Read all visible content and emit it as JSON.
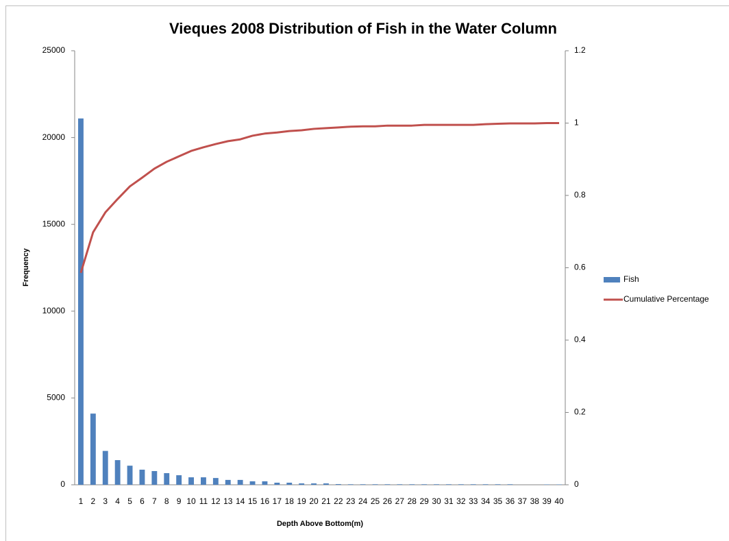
{
  "chart_data": {
    "type": "bar-line",
    "title": "Vieques 2008 Distribution of Fish in the Water Column",
    "x_label": "Depth Above Bottom(m)",
    "y_label": "Frequency",
    "categories": [
      "1",
      "2",
      "3",
      "4",
      "5",
      "6",
      "7",
      "8",
      "9",
      "10",
      "11",
      "12",
      "13",
      "14",
      "15",
      "16",
      "17",
      "18",
      "19",
      "20",
      "21",
      "22",
      "23",
      "24",
      "25",
      "26",
      "27",
      "28",
      "29",
      "30",
      "31",
      "32",
      "33",
      "34",
      "35",
      "36",
      "37",
      "38",
      "39",
      "40"
    ],
    "series": [
      {
        "name": "Fish",
        "type": "bar",
        "color": "#4f81bd",
        "values": [
          21100,
          4100,
          1950,
          1420,
          1100,
          870,
          790,
          670,
          550,
          430,
          430,
          390,
          280,
          280,
          200,
          200,
          120,
          120,
          80,
          80,
          80,
          40,
          30,
          30,
          30,
          30,
          30,
          30,
          30,
          30,
          30,
          30,
          30,
          30,
          30,
          30,
          0,
          0,
          20,
          20
        ]
      },
      {
        "name": "Cumulative Percentage",
        "type": "line",
        "axis": "y2",
        "color": "#c0504d",
        "values": [
          0.586,
          0.698,
          0.753,
          0.79,
          0.825,
          0.849,
          0.874,
          0.893,
          0.908,
          0.923,
          0.933,
          0.942,
          0.95,
          0.955,
          0.965,
          0.971,
          0.974,
          0.978,
          0.98,
          0.984,
          0.986,
          0.988,
          0.99,
          0.991,
          0.991,
          0.993,
          0.993,
          0.993,
          0.995,
          0.995,
          0.995,
          0.995,
          0.995,
          0.997,
          0.998,
          0.999,
          0.999,
          0.999,
          1,
          1
        ]
      }
    ],
    "ylim": [
      0,
      25000
    ],
    "yticks": [
      0,
      5000,
      10000,
      15000,
      20000,
      25000
    ],
    "y2lim": [
      0,
      1.2
    ],
    "y2ticks": [
      0,
      0.2,
      0.4,
      0.6,
      0.8,
      1,
      1.2
    ],
    "grid": false,
    "legend": "right"
  }
}
